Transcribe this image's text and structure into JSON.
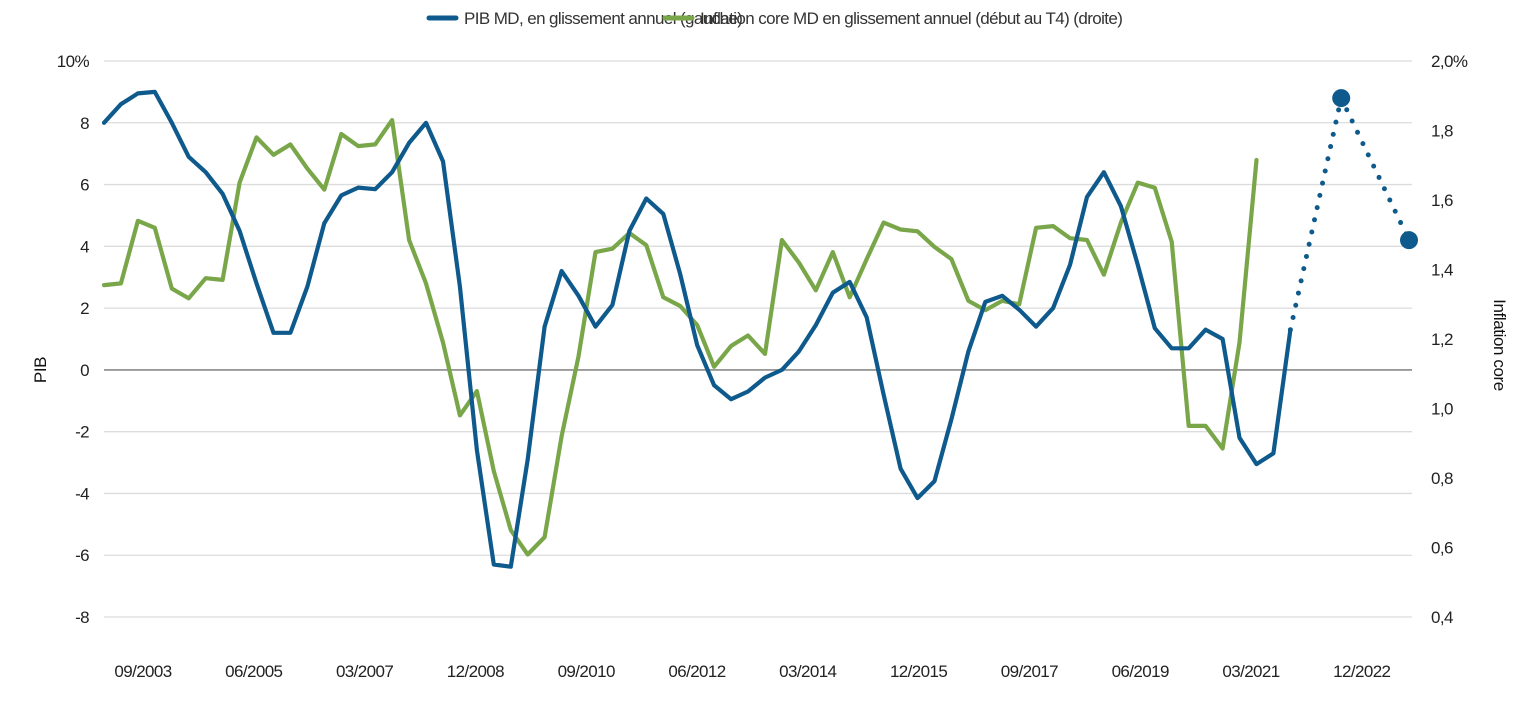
{
  "chart_data": {
    "type": "line",
    "title": "",
    "legend": {
      "placement": "top",
      "items": [
        {
          "label": "PIB MD, en glissement annuel (gauche)",
          "color": "#0f5a8c"
        },
        {
          "label": "Inflation core MD en glissement annuel (début au T4) (droite)",
          "color": "#7aa64a"
        }
      ]
    },
    "ylabel_left": "PIB",
    "ylabel_right": "Inflation core",
    "ylim_left": [
      -8,
      10
    ],
    "ylim_right": [
      0.4,
      2.0
    ],
    "y_ticks_left": [
      "10%",
      "8",
      "6",
      "4",
      "2",
      "0",
      "-2",
      "-4",
      "-6",
      "-8"
    ],
    "y_ticks_right": [
      "2,0%",
      "1,8",
      "1,6",
      "1,4",
      "1,2",
      "1,0",
      "0,8",
      "0,6",
      "0,4"
    ],
    "x_ticks": [
      "09/2003",
      "06/2005",
      "03/2007",
      "12/2008",
      "09/2010",
      "06/2012",
      "03/2014",
      "12/2015",
      "09/2017",
      "06/2019",
      "03/2021",
      "12/2022"
    ],
    "grid": true,
    "x": [
      "09/2003",
      "12/2003",
      "03/2004",
      "06/2004",
      "09/2004",
      "12/2004",
      "03/2005",
      "06/2005",
      "09/2005",
      "12/2005",
      "03/2006",
      "06/2006",
      "09/2006",
      "12/2006",
      "03/2007",
      "06/2007",
      "09/2007",
      "12/2007",
      "03/2008",
      "06/2008",
      "09/2008",
      "12/2008",
      "03/2009",
      "06/2009",
      "09/2009",
      "12/2009",
      "03/2010",
      "06/2010",
      "09/2010",
      "12/2010",
      "03/2011",
      "06/2011",
      "09/2011",
      "12/2011",
      "03/2012",
      "06/2012",
      "09/2012",
      "12/2012",
      "03/2013",
      "06/2013",
      "09/2013",
      "12/2013",
      "03/2014",
      "06/2014",
      "09/2014",
      "12/2014",
      "03/2015",
      "06/2015",
      "09/2015",
      "12/2015",
      "03/2016",
      "06/2016",
      "09/2016",
      "12/2016",
      "03/2017",
      "06/2017",
      "09/2017",
      "12/2017",
      "03/2018",
      "06/2018",
      "09/2018",
      "12/2018",
      "03/2019",
      "06/2019",
      "09/2019",
      "12/2019",
      "03/2020",
      "06/2020",
      "09/2020",
      "12/2020",
      "03/2021",
      "06/2021",
      "09/2021",
      "12/2021",
      "03/2022",
      "06/2022",
      "09/2022",
      "12/2022"
    ],
    "series": [
      {
        "name": "PIB MD, en glissement annuel (gauche)",
        "axis": "left",
        "color": "#0f5a8c",
        "values": [
          8.0,
          8.6,
          8.95,
          9.0,
          8.0,
          6.9,
          6.4,
          5.7,
          4.5,
          2.8,
          1.2,
          1.2,
          2.7,
          4.75,
          5.65,
          5.9,
          5.85,
          6.4,
          7.35,
          8.0,
          6.75,
          2.7,
          -2.6,
          -6.3,
          -6.37,
          -2.9,
          1.4,
          3.2,
          2.4,
          1.4,
          2.1,
          4.5,
          5.55,
          5.05,
          3.1,
          0.8,
          -0.5,
          -0.95,
          -0.7,
          -0.25,
          0.0,
          0.6,
          1.45,
          2.5,
          2.85,
          1.7,
          -0.8,
          -3.2,
          -4.15,
          -3.6,
          -1.6,
          0.6,
          2.2,
          2.4,
          1.95,
          1.4,
          2.0,
          3.4,
          5.6,
          6.4,
          5.3,
          3.4,
          1.35,
          0.7,
          0.7,
          1.3,
          1.0,
          -2.2,
          -3.05,
          -2.7,
          1.3,
          null,
          null,
          null,
          null,
          null,
          null,
          null
        ]
      },
      {
        "name": "Inflation core MD en glissement annuel (début au T4) (droite)",
        "axis": "right",
        "color": "#7aa64a",
        "values": [
          1.355,
          1.36,
          1.54,
          1.52,
          1.345,
          1.317,
          1.375,
          1.37,
          1.65,
          1.78,
          1.73,
          1.76,
          1.69,
          1.63,
          1.79,
          1.755,
          1.76,
          1.83,
          1.485,
          1.36,
          1.19,
          0.98,
          1.05,
          0.82,
          0.65,
          0.58,
          0.63,
          0.92,
          1.15,
          1.45,
          1.46,
          1.505,
          1.47,
          1.32,
          1.295,
          1.24,
          1.12,
          1.18,
          1.21,
          1.157,
          1.485,
          1.42,
          1.34,
          1.45,
          1.32,
          1.43,
          1.535,
          1.515,
          1.51,
          1.465,
          1.43,
          1.31,
          1.283,
          1.31,
          1.3,
          1.52,
          1.525,
          1.49,
          1.485,
          1.385,
          1.535,
          1.65,
          1.635,
          1.48,
          0.95,
          0.95,
          0.885,
          1.19,
          1.715,
          null,
          null,
          null,
          null,
          null,
          null,
          null,
          null,
          null
        ]
      }
    ],
    "projection": {
      "axis": "left",
      "color": "#0f5a8c",
      "style": "dotted",
      "points": [
        {
          "x": "03/2021",
          "y": 1.3,
          "marker": false
        },
        {
          "x": "12/2021",
          "y": 8.8,
          "marker": true
        },
        {
          "x": "12/2022",
          "y": 4.2,
          "marker": true
        }
      ]
    }
  }
}
